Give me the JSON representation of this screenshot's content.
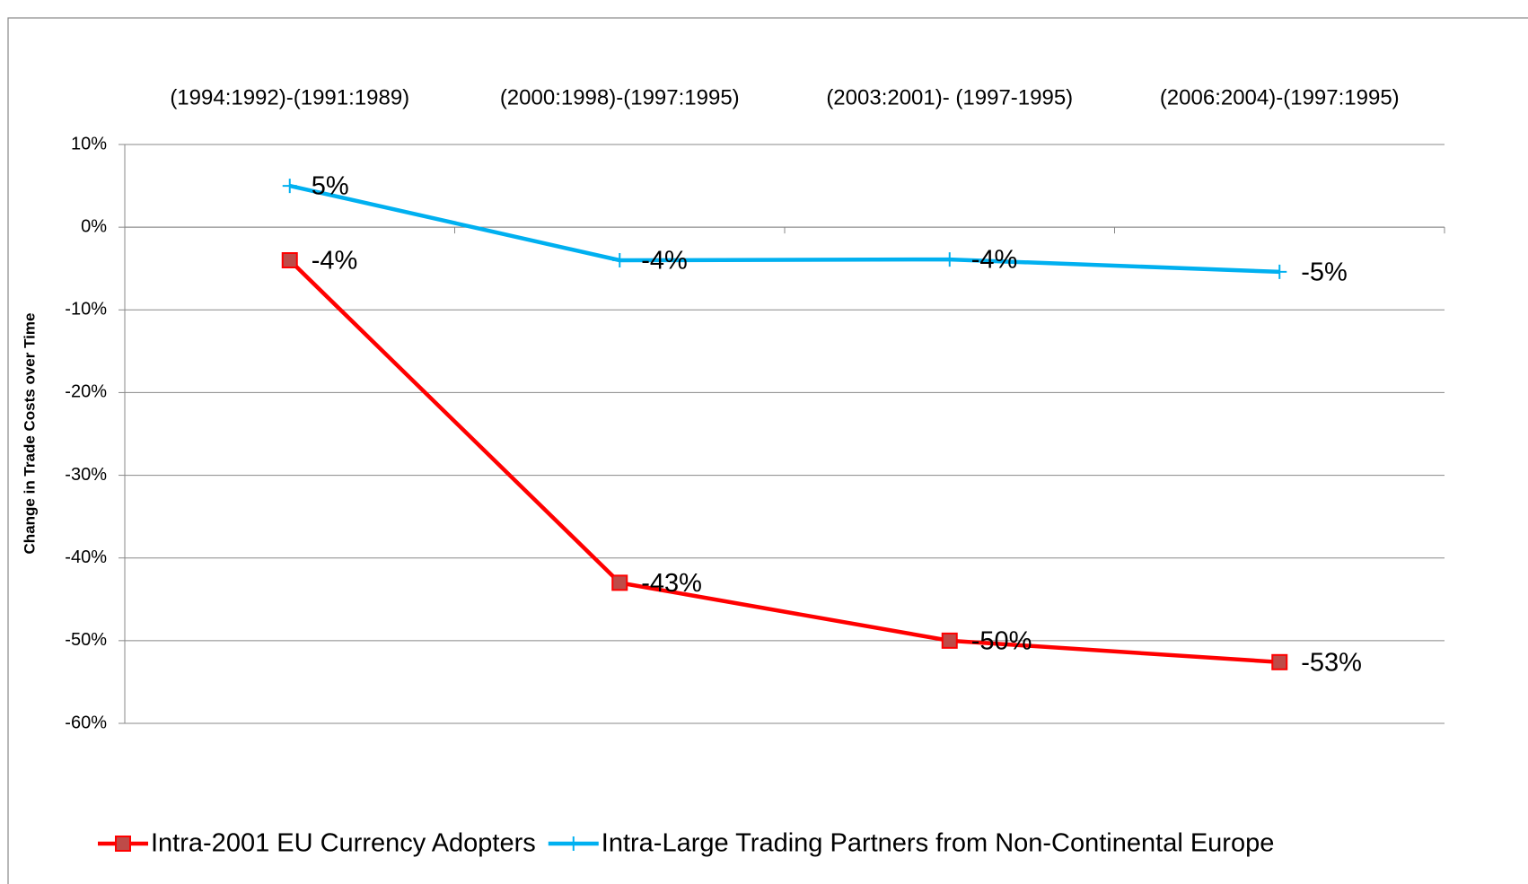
{
  "chart_data": {
    "type": "line",
    "y_label": "Change in Trade Costs over Time",
    "categories": [
      "(1994:1992)-(1991:1989)",
      "(2000:1998)-(1997:1995)",
      "(2003:2001)- (1997-1995)",
      "(2006:2004)-(1997:1995)"
    ],
    "series": [
      {
        "name": "Intra-2001 EU Currency Adopters",
        "color": "#ff0000",
        "marker_color": "#be4b48",
        "marker": "square",
        "values": [
          -4,
          -43,
          -50,
          -52.6
        ],
        "value_labels": [
          "-4%",
          "-43%",
          "-50%",
          "-53%"
        ]
      },
      {
        "name": "Intra-Large Trading Partners from Non-Continental Europe",
        "color": "#00b0f0",
        "marker_color": "#00b0f0",
        "marker": "plus",
        "values": [
          5,
          -4,
          -3.9,
          -5.4
        ],
        "value_labels": [
          "5%",
          "-4%",
          "-4%",
          "-5%"
        ]
      }
    ],
    "ylim": [
      -60,
      10
    ],
    "yticks": [
      {
        "value": -60,
        "label": "-60%"
      },
      {
        "value": -50,
        "label": "-50%"
      },
      {
        "value": -40,
        "label": "-40%"
      },
      {
        "value": -30,
        "label": "-30%"
      },
      {
        "value": -20,
        "label": "-20%"
      },
      {
        "value": -10,
        "label": "-10%"
      },
      {
        "value": 0,
        "label": "0%"
      },
      {
        "value": 10,
        "label": "10%"
      }
    ],
    "grid": true,
    "legend": "bottom"
  }
}
